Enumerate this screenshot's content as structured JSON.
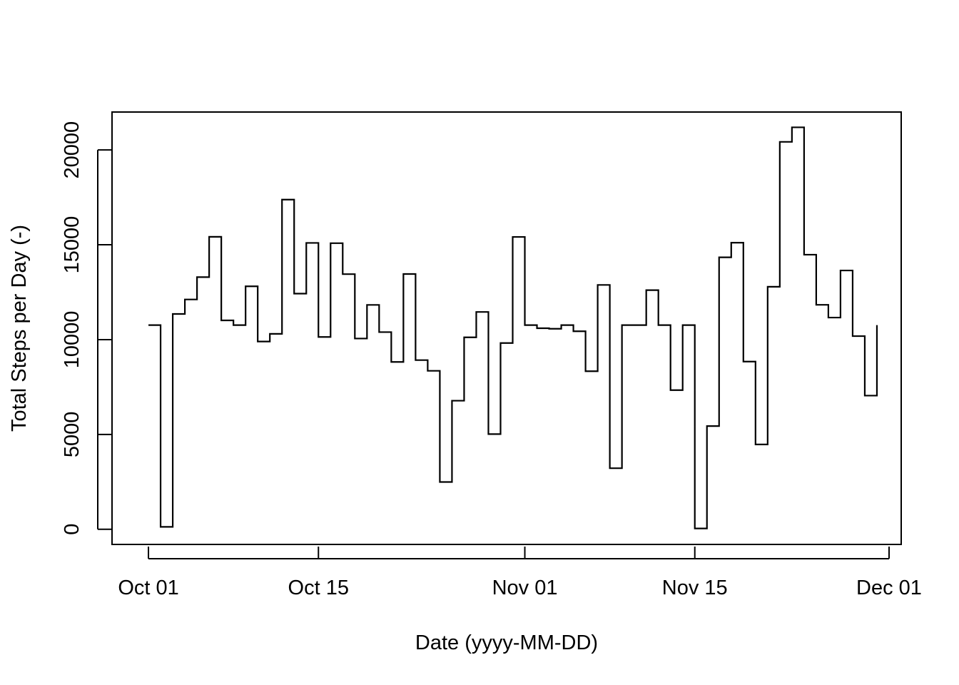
{
  "chart_data": {
    "type": "line",
    "step": true,
    "title": "",
    "xlabel": "Date (yyyy-MM-DD)",
    "ylabel": "Total Steps per Day (-)",
    "x_start": "2012-10-01",
    "xlim": [
      "2012-09-28",
      "2012-12-02"
    ],
    "ylim": [
      -800,
      22000
    ],
    "x_ticks": [
      {
        "date": "2012-10-01",
        "label": "Oct 01"
      },
      {
        "date": "2012-10-15",
        "label": "Oct 15"
      },
      {
        "date": "2012-11-01",
        "label": "Nov 01"
      },
      {
        "date": "2012-11-15",
        "label": "Nov 15"
      },
      {
        "date": "2012-12-01",
        "label": "Dec 01"
      }
    ],
    "y_ticks": [
      {
        "value": 0,
        "label": "0"
      },
      {
        "value": 5000,
        "label": "5000"
      },
      {
        "value": 10000,
        "label": "10000"
      },
      {
        "value": 15000,
        "label": "15000"
      },
      {
        "value": 20000,
        "label": "20000"
      }
    ],
    "grid": false,
    "series": [
      {
        "values": [
          10766,
          126,
          11352,
          12116,
          13294,
          15420,
          11015,
          10766,
          12811,
          9900,
          10304,
          17382,
          12426,
          15098,
          10139,
          15084,
          13452,
          10056,
          11829,
          10395,
          8821,
          13460,
          8918,
          8355,
          2492,
          6778,
          10119,
          11458,
          5018,
          9819,
          15414,
          10766,
          10600,
          10571,
          10766,
          10439,
          8334,
          12883,
          3219,
          10766,
          10766,
          12608,
          10765,
          7336,
          10766,
          41,
          5441,
          14339,
          15110,
          8841,
          4472,
          12787,
          20427,
          21194,
          14478,
          11834,
          11162,
          13646,
          10183,
          7047,
          10766
        ]
      }
    ]
  }
}
